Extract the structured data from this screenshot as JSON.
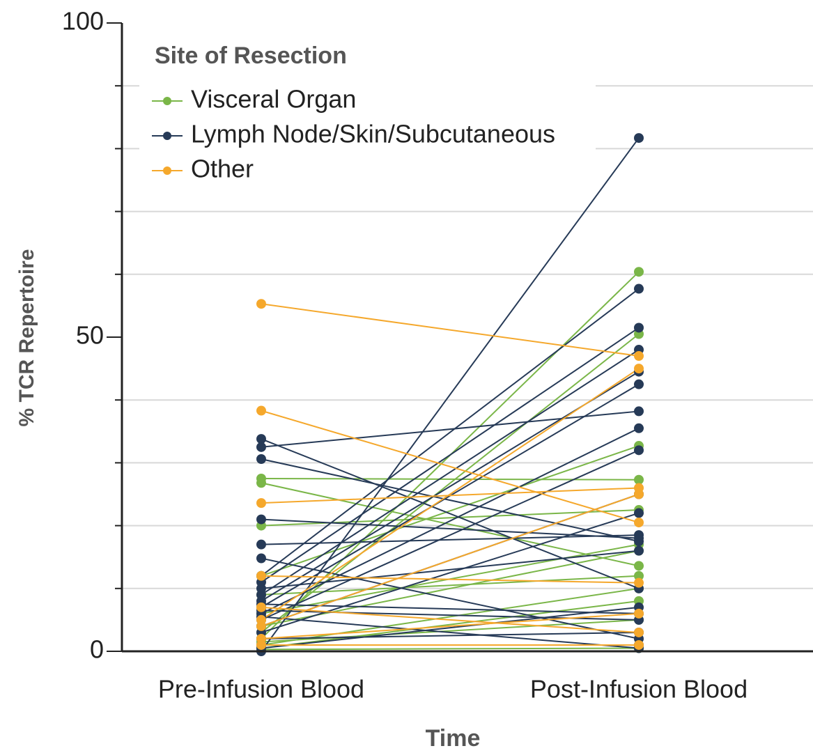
{
  "chart_data": {
    "type": "paired-line",
    "y_label": "% TCR Repertoire",
    "x_label": "Time",
    "categories": [
      "Pre-Infusion Blood",
      "Post-Infusion Blood"
    ],
    "ylim": [
      0,
      100
    ],
    "yticks": [
      0,
      50,
      100
    ],
    "minor_yticks": [
      10,
      20,
      30,
      40,
      60,
      70,
      80,
      90
    ],
    "grid": true,
    "legend_title": "Site of Resection",
    "legend": "upper left",
    "series": [
      {
        "name": "Visceral Organ",
        "color": "#7ab648",
        "values": [
          [
            27.5,
            27.3
          ],
          [
            26.8,
            13.6
          ],
          [
            20,
            22.5
          ],
          [
            12,
            32.7
          ],
          [
            2,
            60.4
          ],
          [
            3,
            50.5
          ],
          [
            6,
            17
          ],
          [
            1,
            10
          ],
          [
            0.5,
            8
          ],
          [
            4,
            16
          ],
          [
            9,
            12
          ],
          [
            0.3,
            0.5
          ],
          [
            1.5,
            5
          ]
        ]
      },
      {
        "name": "Lymph Node/Skin/Subcutaneous",
        "color": "#263a57",
        "values": [
          [
            0,
            81.7
          ],
          [
            33.8,
            10
          ],
          [
            32.5,
            38.2
          ],
          [
            30.6,
            17.5
          ],
          [
            21,
            18
          ],
          [
            17,
            18.5
          ],
          [
            14.8,
            2
          ],
          [
            12,
            57.7
          ],
          [
            11,
            51.5
          ],
          [
            9,
            48
          ],
          [
            8,
            44.5
          ],
          [
            7,
            42.5
          ],
          [
            6,
            35.5
          ],
          [
            5,
            32
          ],
          [
            4,
            25
          ],
          [
            3,
            22
          ],
          [
            7.5,
            6
          ],
          [
            6.5,
            5
          ],
          [
            2,
            3
          ],
          [
            1,
            1
          ],
          [
            0.5,
            7
          ],
          [
            10,
            16
          ],
          [
            5.5,
            0.5
          ]
        ]
      },
      {
        "name": "Other",
        "color": "#f5a82c",
        "values": [
          [
            55.3,
            47
          ],
          [
            38.3,
            20.5
          ],
          [
            23.6,
            26
          ],
          [
            12,
            10.9
          ],
          [
            5,
            45
          ],
          [
            4,
            25
          ],
          [
            1,
            1
          ],
          [
            2,
            6
          ],
          [
            7,
            3
          ]
        ]
      }
    ]
  }
}
